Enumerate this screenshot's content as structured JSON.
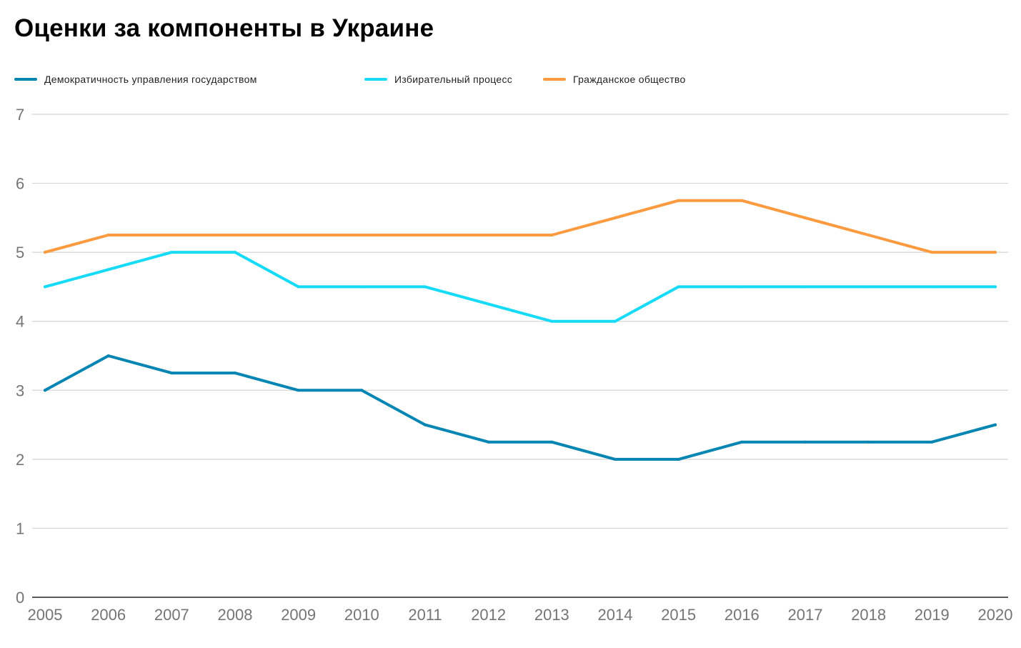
{
  "chart_data": {
    "type": "line",
    "title": "Оценки за компоненты в Украине",
    "xlabel": "",
    "ylabel": "",
    "x": [
      "2005",
      "2006",
      "2007",
      "2008",
      "2009",
      "2010",
      "2011",
      "2012",
      "2013",
      "2014",
      "2015",
      "2016",
      "2017",
      "2018",
      "2019",
      "2020"
    ],
    "yticks": [
      "0",
      "1",
      "2",
      "3",
      "4",
      "5",
      "6",
      "7"
    ],
    "ylim": [
      0,
      7
    ],
    "grid": true,
    "legend_position": "top-left",
    "series": [
      {
        "name": "Демократичность управления государством",
        "color": "#0485b2",
        "values": [
          3,
          3.5,
          3.25,
          3.25,
          3,
          3,
          2.5,
          2.25,
          2.25,
          2,
          2,
          2.25,
          2.25,
          2.25,
          2.25,
          2.5
        ]
      },
      {
        "name": "Избирательный процесс",
        "color": "#15dbf7",
        "values": [
          4.5,
          4.75,
          5,
          5,
          4.5,
          4.5,
          4.5,
          4.25,
          4,
          4,
          4.5,
          4.5,
          4.5,
          4.5,
          4.5,
          4.5
        ]
      },
      {
        "name": "Гражданское общество",
        "color": "#fb9a3f",
        "values": [
          5,
          5.25,
          5.25,
          5.25,
          5.25,
          5.25,
          5.25,
          5.25,
          5.25,
          5.5,
          5.75,
          5.75,
          5.5,
          5.25,
          5,
          5
        ]
      }
    ]
  }
}
